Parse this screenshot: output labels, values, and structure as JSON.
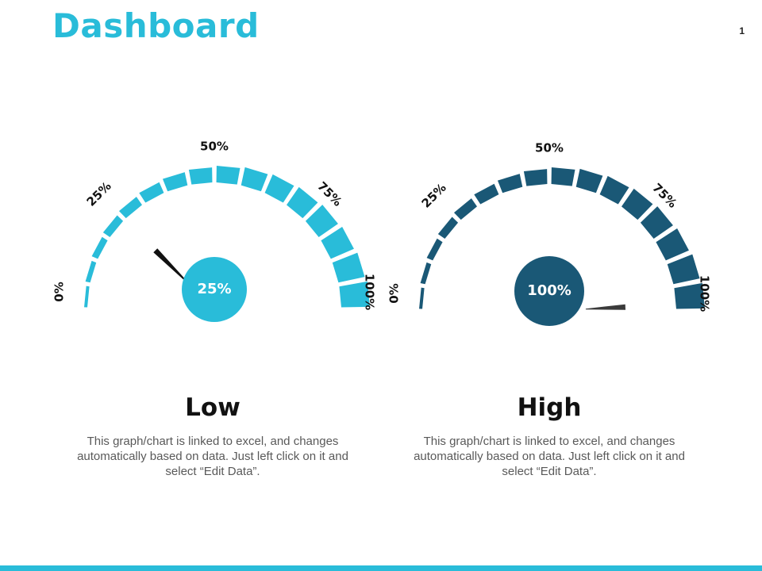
{
  "page": {
    "title": "Dashboard",
    "page_number": "1",
    "accent_color": "#29bcd9"
  },
  "chart_data": [
    {
      "type": "gauge",
      "value_percent": 25,
      "center_label": "25%",
      "tick_labels": [
        "0%",
        "25%",
        "50%",
        "75%",
        "100%"
      ],
      "range": [
        0,
        100
      ],
      "segments": 16,
      "caption": "Low",
      "description": "This graph/chart is linked to excel, and changes automatically based on data. Just left click on it and select “Edit Data”.",
      "color": "#29bcd9",
      "needle_color": "#111111"
    },
    {
      "type": "gauge",
      "value_percent": 100,
      "center_label": "100%",
      "tick_labels": [
        "0%",
        "25%",
        "50%",
        "75%",
        "100%"
      ],
      "range": [
        0,
        100
      ],
      "segments": 16,
      "caption": "High",
      "description": "This graph/chart is linked to excel, and changes automatically based on data. Just left click on it and select “Edit Data”.",
      "color": "#1a5876",
      "needle_color": "#3a3a3a"
    }
  ]
}
